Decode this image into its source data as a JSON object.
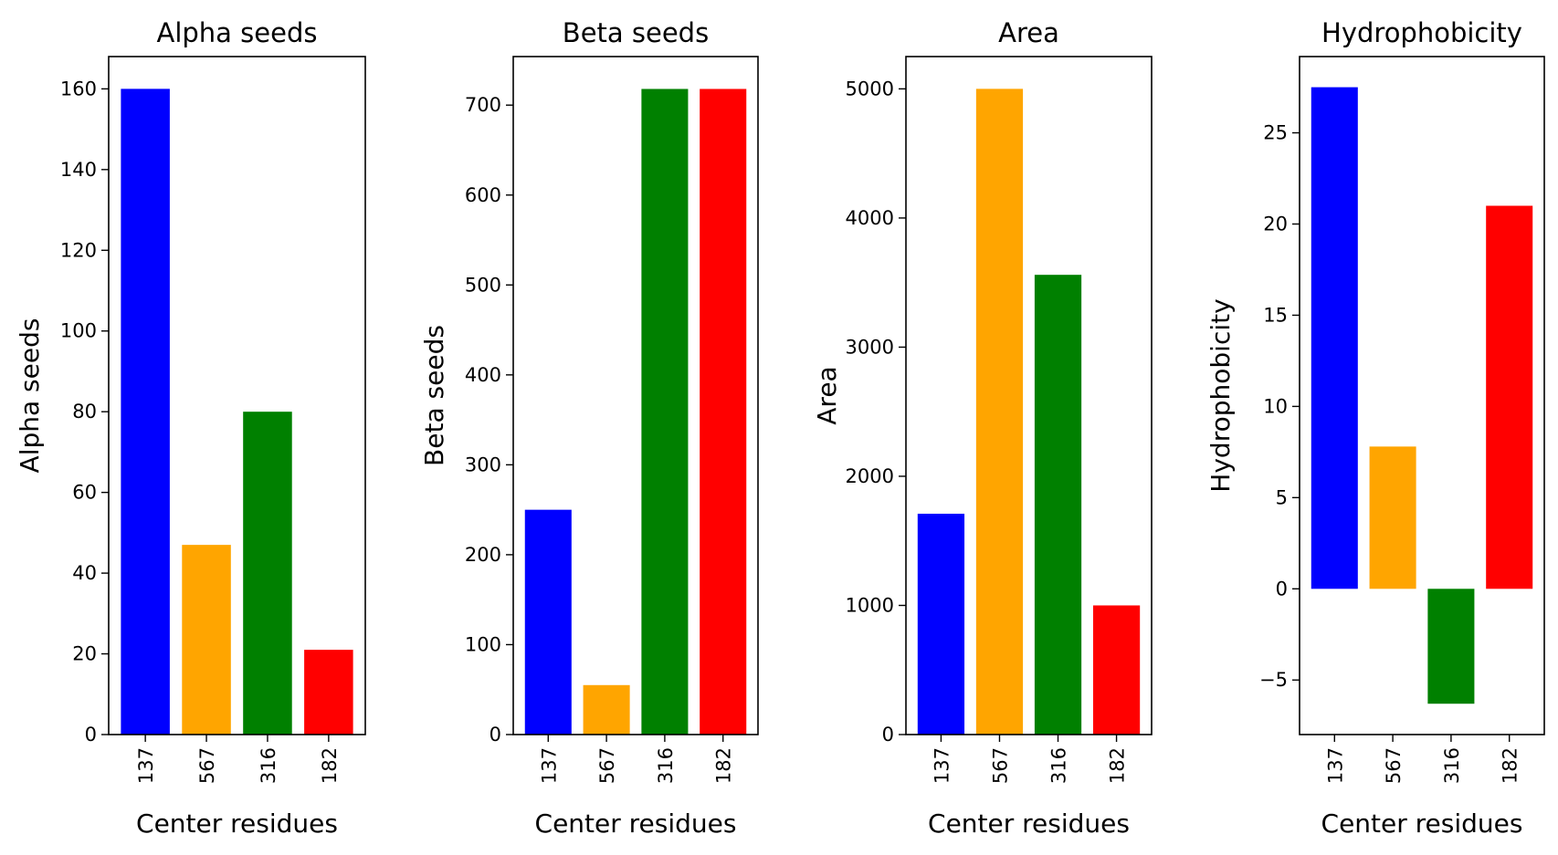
{
  "chart_data": [
    {
      "type": "bar",
      "title": "Alpha seeds",
      "xlabel": "Center residues",
      "ylabel": "Alpha seeds",
      "categories": [
        "137",
        "567",
        "316",
        "182"
      ],
      "values": [
        160,
        47,
        80,
        21
      ],
      "colors": [
        "#0000ff",
        "#ffa500",
        "#008000",
        "#ff0000"
      ],
      "ylim": [
        0,
        168
      ],
      "yticks": [
        0,
        20,
        40,
        60,
        80,
        100,
        120,
        140,
        160
      ],
      "ytick_labels": [
        "0",
        "20",
        "40",
        "60",
        "80",
        "100",
        "120",
        "140",
        "160"
      ]
    },
    {
      "type": "bar",
      "title": "Beta seeds",
      "xlabel": "Center residues",
      "ylabel": "Beta seeds",
      "categories": [
        "137",
        "567",
        "316",
        "182"
      ],
      "values": [
        250,
        55,
        718,
        718
      ],
      "colors": [
        "#0000ff",
        "#ffa500",
        "#008000",
        "#ff0000"
      ],
      "ylim": [
        0,
        754
      ],
      "yticks": [
        0,
        100,
        200,
        300,
        400,
        500,
        600,
        700
      ],
      "ytick_labels": [
        "0",
        "100",
        "200",
        "300",
        "400",
        "500",
        "600",
        "700"
      ]
    },
    {
      "type": "bar",
      "title": "Area",
      "xlabel": "Center residues",
      "ylabel": "Area",
      "categories": [
        "137",
        "567",
        "316",
        "182"
      ],
      "values": [
        1710,
        5000,
        3560,
        1000
      ],
      "colors": [
        "#0000ff",
        "#ffa500",
        "#008000",
        "#ff0000"
      ],
      "ylim": [
        0,
        5250
      ],
      "yticks": [
        0,
        1000,
        2000,
        3000,
        4000,
        5000
      ],
      "ytick_labels": [
        "0",
        "1000",
        "2000",
        "3000",
        "4000",
        "5000"
      ]
    },
    {
      "type": "bar",
      "title": "Hydrophobicity",
      "xlabel": "Center residues",
      "ylabel": "Hydrophobicity",
      "categories": [
        "137",
        "567",
        "316",
        "182"
      ],
      "values": [
        27.5,
        7.8,
        -6.3,
        21.0
      ],
      "colors": [
        "#0000ff",
        "#ffa500",
        "#008000",
        "#ff0000"
      ],
      "ylim": [
        -7.99,
        29.18
      ],
      "yticks": [
        -5,
        0,
        5,
        10,
        15,
        20,
        25
      ],
      "ytick_labels": [
        "−5",
        "0",
        "5",
        "10",
        "15",
        "20",
        "25"
      ]
    }
  ]
}
